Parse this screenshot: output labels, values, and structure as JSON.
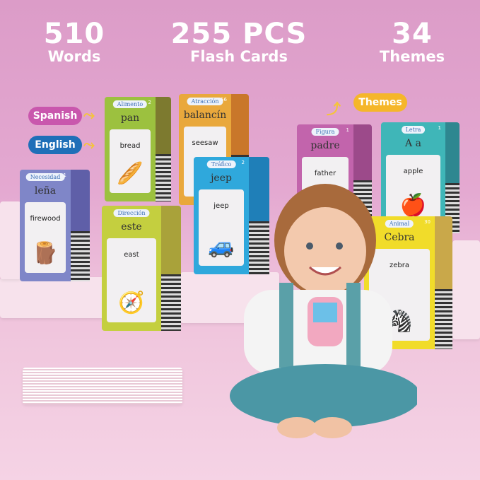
{
  "stats": [
    {
      "big": "510",
      "small": "Words"
    },
    {
      "big": "255 PCS",
      "small": "Flash Cards"
    },
    {
      "big": "34",
      "small": "Themes"
    }
  ],
  "labels": {
    "spanish": "Spanish",
    "english": "English",
    "themes": "Themes"
  },
  "colors": {
    "spanish_pill": "#c957ad",
    "english_pill": "#1f6fb8",
    "themes_pill": "#f5b62a"
  },
  "cards": [
    {
      "theme": "Necesidad",
      "number": "1",
      "spanish": "leña",
      "english": "firewood",
      "picture": "firewood-logs",
      "color": "#7f86c8",
      "side": "#5f5fa8"
    },
    {
      "theme": "Alimento",
      "number": "2",
      "spanish": "pan",
      "english": "bread",
      "picture": "bread",
      "color": "#9cc13f",
      "side": "#7d7a2f"
    },
    {
      "theme": "Atracción",
      "number": "56",
      "spanish": "balancín",
      "english": "seesaw",
      "picture": "seesaw",
      "color": "#e9a83c",
      "side": "#c9772a"
    },
    {
      "theme": "Tráfico",
      "number": "2",
      "spanish": "jeep",
      "english": "jeep",
      "picture": "jeep",
      "color": "#2fa8dc",
      "side": "#1f7fb8"
    },
    {
      "theme": "Dirección",
      "number": "",
      "spanish": "este",
      "english": "east",
      "picture": "compass",
      "color": "#c4cf3f",
      "side": "#a9a23a"
    },
    {
      "theme": "Figura",
      "number": "1",
      "spanish": "padre",
      "english": "father",
      "picture": "",
      "color": "#c264ac",
      "side": "#9c4a8a"
    },
    {
      "theme": "Letra",
      "number": "1",
      "spanish": "A a",
      "english": "apple",
      "picture": "apple",
      "color": "#3fb6b8",
      "side": "#2e8790"
    },
    {
      "theme": "Animal",
      "number": "30",
      "spanish": "Cebra",
      "english": "zebra",
      "picture": "zebra",
      "color": "#f1dc2a",
      "side": "#c9a84a"
    }
  ]
}
